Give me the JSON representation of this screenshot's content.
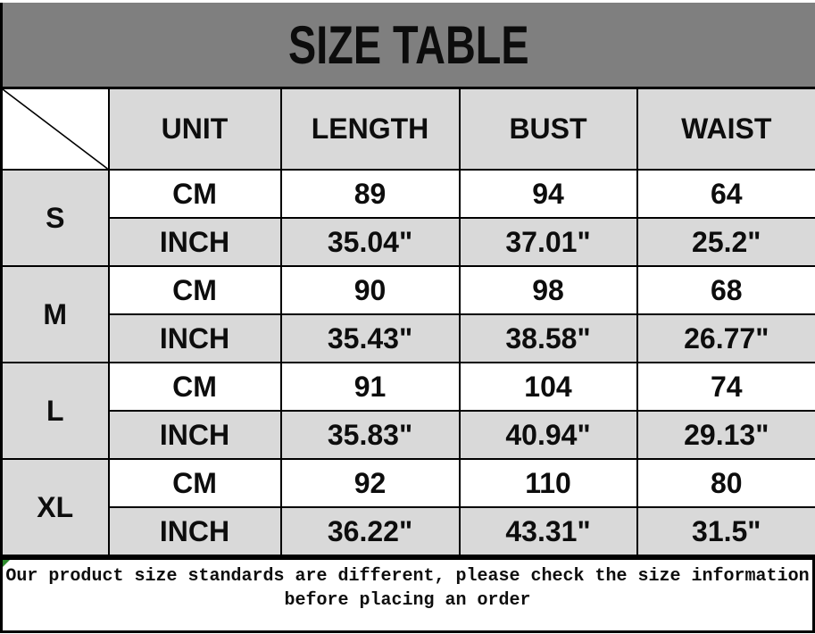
{
  "title": "SIZE TABLE",
  "colors": {
    "header_bg": "#7f7f7f",
    "cell_gray": "#d9d9d9",
    "border_black": "#000000",
    "flag_green": "#2e8b2e"
  },
  "table": {
    "headers": [
      "UNIT",
      "LENGTH",
      "BUST",
      "WAIST"
    ],
    "groups": [
      {
        "size": "S",
        "rows": [
          {
            "unit": "CM",
            "values": [
              "89",
              "94",
              "64"
            ]
          },
          {
            "unit": "INCH",
            "values": [
              "35.04\"",
              "37.01\"",
              "25.2\""
            ]
          }
        ]
      },
      {
        "size": "M",
        "rows": [
          {
            "unit": "CM",
            "values": [
              "90",
              "98",
              "68"
            ]
          },
          {
            "unit": "INCH",
            "values": [
              "35.43\"",
              "38.58\"",
              "26.77\""
            ]
          }
        ]
      },
      {
        "size": "L",
        "rows": [
          {
            "unit": "CM",
            "values": [
              "91",
              "104",
              "74"
            ]
          },
          {
            "unit": "INCH",
            "values": [
              "35.83\"",
              "40.94\"",
              "29.13\""
            ]
          }
        ]
      },
      {
        "size": "XL",
        "rows": [
          {
            "unit": "CM",
            "values": [
              "92",
              "110",
              "80"
            ]
          },
          {
            "unit": "INCH",
            "values": [
              "36.22\"",
              "43.31\"",
              "31.5\""
            ]
          }
        ]
      }
    ]
  },
  "footer": {
    "lines": [
      "Our product size standards are different, please check the size information",
      "before placing an order"
    ]
  }
}
